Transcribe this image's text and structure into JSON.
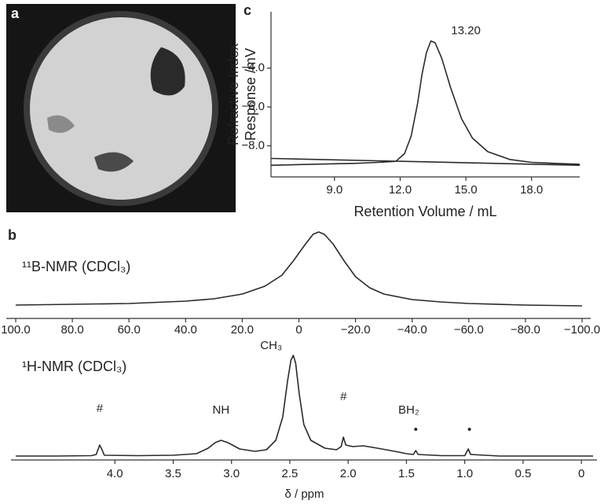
{
  "panel_labels": [
    "a",
    "b",
    "c"
  ],
  "chart_data": [
    {
      "type": "line",
      "ylabel": [
        "Refractive Index",
        "Response /mV"
      ],
      "xlabel": "Retention Volume / mL",
      "xlim": [
        6.1,
        20.2
      ],
      "ylim": [
        -9.6,
        -1.1
      ],
      "xticks": [
        {
          "value": 9,
          "label": "9.0"
        },
        {
          "value": 12,
          "label": "12.0"
        },
        {
          "value": 15,
          "label": "15.0"
        },
        {
          "value": 18,
          "label": "18.0"
        }
      ],
      "yticks": [
        {
          "value": -4,
          "label": "−4.0"
        },
        {
          "value": -6,
          "label": "−6.0"
        },
        {
          "value": -8,
          "label": "−8.0"
        }
      ],
      "color": "#2a2a2a",
      "series": [
        {
          "x": [
            6.1,
            8,
            10,
            11,
            11.8,
            12.2,
            12.5,
            12.8,
            13.0,
            13.2,
            13.4,
            13.6,
            13.9,
            14.3,
            14.8,
            15.3,
            16,
            17,
            18,
            19,
            20.2
          ],
          "values": [
            -9.0,
            -8.95,
            -8.9,
            -8.85,
            -8.8,
            -8.4,
            -7.5,
            -5.8,
            -4.3,
            -3.2,
            -2.6,
            -2.7,
            -3.5,
            -5.0,
            -6.6,
            -7.6,
            -8.3,
            -8.7,
            -8.85,
            -8.9,
            -8.95
          ]
        },
        {
          "x": [
            6.1,
            20.2
          ],
          "values": [
            -8.65,
            -9.0
          ]
        }
      ],
      "annotations": [
        {
          "text": "13.20",
          "x": 15.0,
          "y": -2.1
        }
      ]
    },
    {
      "type": "line",
      "title": "¹¹B-NMR (CDCl₃)",
      "xlim": [
        100,
        -100
      ],
      "ylim": [
        0,
        100
      ],
      "xticks": [
        {
          "value": 100,
          "label": "100.0"
        },
        {
          "value": 80,
          "label": "80.0"
        },
        {
          "value": 60,
          "label": "60.0"
        },
        {
          "value": 40,
          "label": "40.0"
        },
        {
          "value": 20,
          "label": "20.0"
        },
        0,
        {
          "value": -20,
          "label": "−20.0"
        },
        {
          "value": -40,
          "label": "−40.0"
        },
        {
          "value": -60,
          "label": "−60.0"
        },
        {
          "value": -80,
          "label": "−80.0"
        },
        {
          "value": -100,
          "label": "−100.0"
        }
      ],
      "color": "#2a2a2a",
      "series": [
        {
          "x": [
            100,
            80,
            60,
            40,
            30,
            20,
            12,
            6,
            2,
            -2,
            -5,
            -7,
            -9,
            -12,
            -16,
            -20,
            -25,
            -30,
            -40,
            -50,
            -60,
            -80,
            -100
          ],
          "values": [
            2,
            3,
            4,
            7,
            10,
            16,
            26,
            40,
            58,
            78,
            92,
            95,
            92,
            80,
            58,
            38,
            24,
            16,
            9,
            6,
            4,
            2,
            1
          ]
        }
      ]
    },
    {
      "type": "line",
      "title": "¹H-NMR (CDCl₃)",
      "xlabel": "δ / ppm",
      "xlim": [
        4.85,
        -0.1
      ],
      "ylim": [
        0,
        130
      ],
      "xticks": [
        {
          "value": 4,
          "label": "4.0"
        },
        3.5,
        {
          "value": 3,
          "label": "3.0"
        },
        2.5,
        {
          "value": 2,
          "label": "2.0"
        },
        1.5,
        {
          "value": 1,
          "label": "1.0"
        },
        0.5,
        0
      ],
      "color": "#2a2a2a",
      "series": [
        {
          "x": [
            4.85,
            4.5,
            4.2,
            4.16,
            4.14,
            4.13,
            4.11,
            4.09,
            3.8,
            3.5,
            3.3,
            3.2,
            3.14,
            3.09,
            3.03,
            2.93,
            2.8,
            2.7,
            2.62,
            2.56,
            2.52,
            2.49,
            2.47,
            2.45,
            2.42,
            2.38,
            2.32,
            2.2,
            2.1,
            2.06,
            2.04,
            2.02,
            1.96,
            1.87,
            1.75,
            1.6,
            1.5,
            1.44,
            1.42,
            1.4,
            1.2,
            1.0,
            0.97,
            0.95,
            0.7,
            0.3,
            -0.1
          ],
          "values": [
            0,
            0,
            0.5,
            2,
            10,
            14,
            8,
            1,
            0.5,
            1,
            3,
            10,
            17,
            20,
            17,
            9,
            6,
            8,
            20,
            50,
            95,
            122,
            128,
            118,
            80,
            40,
            20,
            10,
            8,
            12,
            24,
            14,
            12,
            13,
            10,
            6,
            3,
            2,
            7,
            2,
            0.5,
            0.5,
            9,
            2,
            0,
            0,
            0
          ]
        }
      ],
      "annotations": [
        {
          "text": "#",
          "x": 4.13,
          "y": 60
        },
        {
          "text": "NH",
          "x": 3.09,
          "y": 58
        },
        {
          "text": "CH₃",
          "x": 2.66,
          "y": 140
        },
        {
          "text": "#",
          "x": 2.04,
          "y": 75
        },
        {
          "text": "BH₂",
          "x": 1.48,
          "y": 58
        },
        {
          "text": "•",
          "x": 1.42,
          "y": 33
        },
        {
          "text": "•",
          "x": 0.96,
          "y": 33
        }
      ]
    }
  ]
}
